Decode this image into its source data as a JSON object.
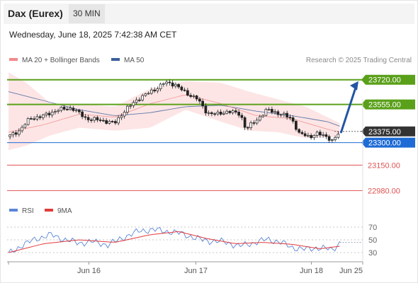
{
  "header": {
    "title": "Dax (Eurex)",
    "interval": "30 MIN"
  },
  "datetime": "Wednesday, June 18, 2025 7:42:38 AM CET",
  "legend": {
    "ma20_label": "MA 20 + Bollinger Bands",
    "ma50_label": "MA 50",
    "source": "Research © 2025 Trading Central"
  },
  "colors": {
    "resistance": "#5aa01a",
    "support_pivot": "#1e6bd6",
    "support": "#e05252",
    "candle": "#222222",
    "bollinger_fill": "#fde2e2",
    "ma20": "#f08a8a",
    "ma50": "#3b5f9a",
    "arrow": "#2255a4",
    "rsi": "#5b86d6",
    "rsi_ma": "#e23b3b",
    "current_price_bg": "#333333"
  },
  "chart_data": [
    {
      "type": "candlestick",
      "x_ticks": [
        "Jun 16",
        "Jun 17",
        "Jun 18",
        "Jun 25"
      ],
      "x_tick_positions": [
        0.227,
        0.529,
        0.855,
        1.0
      ],
      "ylim": [
        22930,
        23780
      ],
      "current_price": {
        "label": "23375.00",
        "value": 23375
      },
      "levels": [
        {
          "label": "23720.00",
          "value": 23720,
          "kind": "resistance"
        },
        {
          "label": "23555.00",
          "value": 23555,
          "kind": "resistance"
        },
        {
          "label": "23300.00",
          "value": 23300,
          "kind": "pivot"
        },
        {
          "label": "23150.00",
          "value": 23150,
          "kind": "support"
        },
        {
          "label": "22980.00",
          "value": 22980,
          "kind": "support"
        }
      ],
      "projection": {
        "from": 23370,
        "to": 23720
      },
      "close_anchors": [
        [
          0,
          23340
        ],
        [
          0.03,
          23380
        ],
        [
          0.06,
          23460
        ],
        [
          0.1,
          23480
        ],
        [
          0.14,
          23520
        ],
        [
          0.18,
          23530
        ],
        [
          0.22,
          23460
        ],
        [
          0.26,
          23450
        ],
        [
          0.3,
          23430
        ],
        [
          0.33,
          23520
        ],
        [
          0.37,
          23600
        ],
        [
          0.41,
          23650
        ],
        [
          0.44,
          23700
        ],
        [
          0.47,
          23690
        ],
        [
          0.5,
          23630
        ],
        [
          0.53,
          23600
        ],
        [
          0.56,
          23500
        ],
        [
          0.59,
          23490
        ],
        [
          0.62,
          23510
        ],
        [
          0.655,
          23490
        ],
        [
          0.67,
          23390
        ],
        [
          0.7,
          23450
        ],
        [
          0.73,
          23520
        ],
        [
          0.77,
          23490
        ],
        [
          0.8,
          23460
        ],
        [
          0.82,
          23360
        ],
        [
          0.85,
          23340
        ],
        [
          0.87,
          23360
        ],
        [
          0.9,
          23340
        ],
        [
          0.915,
          23310
        ],
        [
          0.935,
          23370
        ]
      ],
      "ma20_anchors": [
        [
          0,
          23370
        ],
        [
          0.1,
          23420
        ],
        [
          0.2,
          23490
        ],
        [
          0.3,
          23470
        ],
        [
          0.4,
          23560
        ],
        [
          0.5,
          23620
        ],
        [
          0.6,
          23560
        ],
        [
          0.7,
          23480
        ],
        [
          0.8,
          23460
        ],
        [
          0.9,
          23390
        ],
        [
          0.935,
          23370
        ]
      ],
      "ma50_anchors": [
        [
          0,
          23640
        ],
        [
          0.1,
          23580
        ],
        [
          0.2,
          23520
        ],
        [
          0.3,
          23480
        ],
        [
          0.4,
          23500
        ],
        [
          0.5,
          23540
        ],
        [
          0.6,
          23550
        ],
        [
          0.7,
          23510
        ],
        [
          0.8,
          23480
        ],
        [
          0.9,
          23440
        ],
        [
          0.935,
          23410
        ]
      ],
      "bollinger_upper": [
        [
          0,
          23770
        ],
        [
          0.05,
          23700
        ],
        [
          0.12,
          23560
        ],
        [
          0.2,
          23560
        ],
        [
          0.3,
          23540
        ],
        [
          0.4,
          23660
        ],
        [
          0.5,
          23710
        ],
        [
          0.6,
          23700
        ],
        [
          0.68,
          23640
        ],
        [
          0.76,
          23590
        ],
        [
          0.84,
          23540
        ],
        [
          0.935,
          23430
        ]
      ],
      "bollinger_lower": [
        [
          0,
          23250
        ],
        [
          0.05,
          23280
        ],
        [
          0.12,
          23350
        ],
        [
          0.2,
          23400
        ],
        [
          0.3,
          23380
        ],
        [
          0.4,
          23400
        ],
        [
          0.5,
          23520
        ],
        [
          0.6,
          23440
        ],
        [
          0.68,
          23380
        ],
        [
          0.76,
          23370
        ],
        [
          0.84,
          23330
        ],
        [
          0.935,
          23340
        ]
      ]
    },
    {
      "type": "line",
      "title": "RSI",
      "series": [
        {
          "name": "RSI"
        },
        {
          "name": "9MA"
        }
      ],
      "y_ticks": [
        "70",
        "50",
        "30"
      ],
      "y_tick_values": [
        70,
        50,
        30
      ],
      "ylim": [
        20,
        80
      ],
      "rsi_anchors": [
        [
          0,
          28
        ],
        [
          0.04,
          42
        ],
        [
          0.08,
          52
        ],
        [
          0.12,
          58
        ],
        [
          0.16,
          50
        ],
        [
          0.2,
          45
        ],
        [
          0.24,
          47
        ],
        [
          0.28,
          42
        ],
        [
          0.33,
          55
        ],
        [
          0.37,
          64
        ],
        [
          0.41,
          66
        ],
        [
          0.45,
          63
        ],
        [
          0.49,
          60
        ],
        [
          0.53,
          52
        ],
        [
          0.57,
          48
        ],
        [
          0.61,
          47
        ],
        [
          0.65,
          40
        ],
        [
          0.69,
          45
        ],
        [
          0.73,
          51
        ],
        [
          0.77,
          46
        ],
        [
          0.8,
          38
        ],
        [
          0.84,
          35
        ],
        [
          0.88,
          38
        ],
        [
          0.915,
          34
        ],
        [
          0.935,
          46
        ]
      ],
      "ma9_anchors": [
        [
          0,
          30
        ],
        [
          0.1,
          44
        ],
        [
          0.2,
          50
        ],
        [
          0.3,
          46
        ],
        [
          0.4,
          58
        ],
        [
          0.48,
          63
        ],
        [
          0.56,
          52
        ],
        [
          0.64,
          44
        ],
        [
          0.72,
          46
        ],
        [
          0.8,
          43
        ],
        [
          0.88,
          36
        ],
        [
          0.935,
          40
        ]
      ]
    }
  ]
}
